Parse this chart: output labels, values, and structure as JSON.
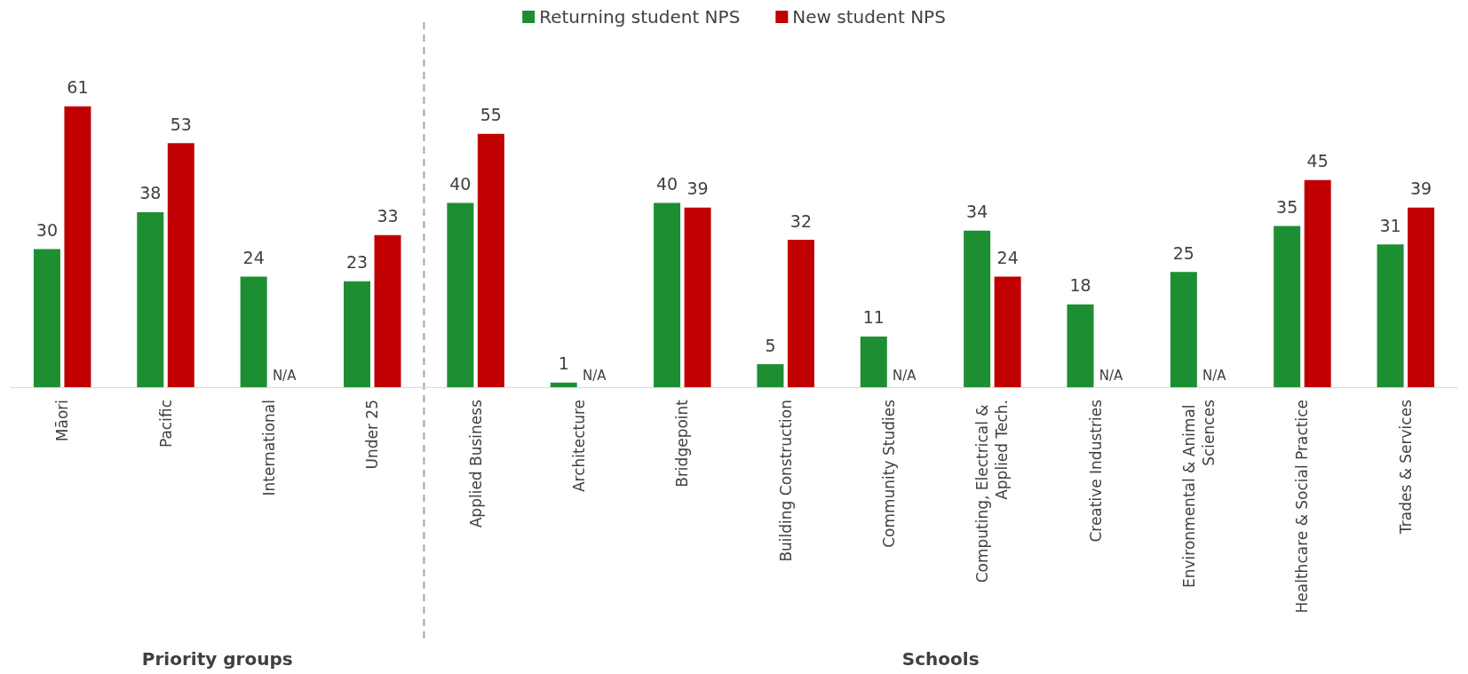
{
  "chart_data": {
    "type": "bar",
    "categories": [
      "Māori",
      "Pacific",
      "International",
      "Under 25",
      "Applied Business",
      "Architecture",
      "Bridgepoint",
      "Building Construction",
      "Community Studies",
      "Computing, Electrical & Applied Tech.",
      "Creative Industries",
      "Environmental & Animal Sciences",
      "Healthcare & Social Practice",
      "Trades & Services"
    ],
    "series": [
      {
        "name": "Returning student NPS",
        "color": "#1e8e32",
        "values": [
          30,
          38,
          24,
          23,
          40,
          1,
          40,
          5,
          11,
          34,
          18,
          25,
          35,
          31
        ],
        "value_labels": [
          "30",
          "38",
          "24",
          "23",
          "40",
          "1",
          "40",
          "5",
          "11",
          "34",
          "18",
          "25",
          "35",
          "31"
        ]
      },
      {
        "name": "New student NPS",
        "color": "#c00000",
        "values": [
          61,
          53,
          null,
          33,
          55,
          null,
          39,
          32,
          null,
          24,
          null,
          null,
          45,
          39
        ],
        "value_labels": [
          "61",
          "53",
          "N/A",
          "33",
          "55",
          "N/A",
          "39",
          "32",
          "N/A",
          "24",
          "N/A",
          "N/A",
          "45",
          "39"
        ]
      }
    ],
    "annotations": [
      "Priority groups",
      "Schools"
    ],
    "legend": "top",
    "grid": false
  }
}
